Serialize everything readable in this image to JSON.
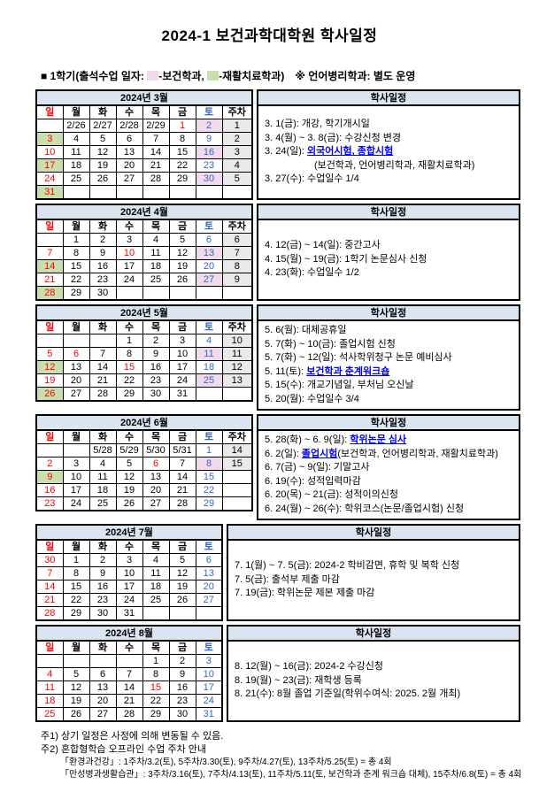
{
  "title": "2024-1 보건과학대학원 학사일정",
  "legend": {
    "prefix": "■ 1학기(출석수업 일자: ",
    "pink_label": "-보건학과, ",
    "green_label": "-재활치료학과)",
    "suffix": "※ 언어병리학과: 별도 운영"
  },
  "schedule_header": "학사일정",
  "weekday_headers": [
    "일",
    "월",
    "화",
    "수",
    "목",
    "금",
    "토"
  ],
  "week_col_header": "주차",
  "colors": {
    "header_bg": "#dbe5f1",
    "pink_highlight": "#f0daec",
    "green_highlight": "#c9dfae",
    "sunday_red": "#ff0000",
    "saturday_blue": "#3366cc",
    "event_highlight_blue": "#0000ff",
    "week_cell_bg": "#e9e9e9"
  },
  "months": [
    {
      "title": "2024년 3월",
      "week_col": true,
      "rows": [
        {
          "days": [
            "",
            "2/26",
            "2/27",
            "2/28",
            "2/29",
            {
              "t": "1",
              "c": "red"
            },
            {
              "t": "2",
              "c": "blue",
              "bg": "pink"
            }
          ],
          "week": "1"
        },
        {
          "days": [
            {
              "t": "3",
              "c": "red",
              "bg": "green"
            },
            "4",
            "5",
            "6",
            "7",
            "8",
            {
              "t": "9",
              "c": "blue"
            }
          ],
          "week": "2"
        },
        {
          "days": [
            {
              "t": "10",
              "c": "red"
            },
            "11",
            "12",
            "13",
            "14",
            "15",
            {
              "t": "16",
              "c": "blue",
              "bg": "pink"
            }
          ],
          "week": "3"
        },
        {
          "days": [
            {
              "t": "17",
              "c": "red",
              "bg": "green"
            },
            "18",
            "19",
            "20",
            "21",
            "22",
            {
              "t": "23",
              "c": "blue"
            }
          ],
          "week": "4"
        },
        {
          "days": [
            {
              "t": "24",
              "c": "red"
            },
            "25",
            "26",
            "27",
            "28",
            "29",
            {
              "t": "30",
              "c": "blue",
              "bg": "pink"
            }
          ],
          "week": "5"
        },
        {
          "days": [
            {
              "t": "31",
              "c": "red",
              "bg": "green"
            },
            "",
            "",
            "",
            "",
            "",
            ""
          ],
          "week": ""
        }
      ],
      "events": [
        {
          "parts": [
            "3. 1(금): 개강, 학기개시일"
          ]
        },
        {
          "parts": [
            "3. 4(월) ~ 3. 8(금): 수강신청 변경"
          ]
        },
        {
          "parts": [
            "3. 24(일): ",
            {
              "t": "외국어시험, 종합시험",
              "hl": true
            }
          ]
        },
        {
          "parts": [
            "(보건학과, 언어병리학과, 재활치료학과)"
          ],
          "indent": true
        },
        {
          "parts": [
            "3. 27(수): 수업일수 1/4"
          ]
        }
      ]
    },
    {
      "title": "2024년 4월",
      "week_col": true,
      "rows": [
        {
          "days": [
            "",
            "1",
            "2",
            "3",
            "4",
            "5",
            {
              "t": "6",
              "c": "blue"
            }
          ],
          "week": "6"
        },
        {
          "days": [
            {
              "t": "7",
              "c": "red"
            },
            "8",
            "9",
            {
              "t": "10",
              "c": "red"
            },
            "11",
            "12",
            {
              "t": "13",
              "c": "blue",
              "bg": "pink"
            }
          ],
          "week": "7"
        },
        {
          "days": [
            {
              "t": "14",
              "c": "red",
              "bg": "green"
            },
            "15",
            "16",
            "17",
            "18",
            "19",
            {
              "t": "20",
              "c": "blue"
            }
          ],
          "week": "8"
        },
        {
          "days": [
            {
              "t": "21",
              "c": "red"
            },
            "22",
            "23",
            "24",
            "25",
            "26",
            {
              "t": "27",
              "c": "blue",
              "bg": "pink"
            }
          ],
          "week": "9"
        },
        {
          "days": [
            {
              "t": "28",
              "c": "red",
              "bg": "green"
            },
            "29",
            "30",
            "",
            "",
            "",
            ""
          ],
          "week": ""
        }
      ],
      "events": [
        {
          "parts": [
            "4. 12(금) ~ 14(일): 중간고사"
          ]
        },
        {
          "parts": [
            "4. 15(월) ~ 19(금): 1학기 논문심사 신청"
          ]
        },
        {
          "parts": [
            "4. 23(화): 수업일수 1/2"
          ]
        }
      ]
    },
    {
      "title": "2024년 5월",
      "week_col": true,
      "rows": [
        {
          "days": [
            "",
            "",
            "",
            "1",
            "2",
            "3",
            {
              "t": "4",
              "c": "blue"
            }
          ],
          "week": "10"
        },
        {
          "days": [
            {
              "t": "5",
              "c": "red"
            },
            {
              "t": "6",
              "c": "red"
            },
            "7",
            "8",
            "9",
            "10",
            {
              "t": "11",
              "c": "blue",
              "bg": "pink"
            }
          ],
          "week": "11"
        },
        {
          "days": [
            {
              "t": "12",
              "c": "red",
              "bg": "green"
            },
            "13",
            "14",
            {
              "t": "15",
              "c": "red"
            },
            "16",
            "17",
            {
              "t": "18",
              "c": "blue"
            }
          ],
          "week": "12"
        },
        {
          "days": [
            {
              "t": "19",
              "c": "red"
            },
            "20",
            "21",
            "22",
            "23",
            "24",
            {
              "t": "25",
              "c": "blue",
              "bg": "pink"
            }
          ],
          "week": "13"
        },
        {
          "days": [
            {
              "t": "26",
              "c": "red",
              "bg": "green"
            },
            "27",
            "28",
            "29",
            "30",
            "31",
            ""
          ],
          "week": ""
        }
      ],
      "events": [
        {
          "parts": [
            "5. 6(월): 대체공휴일"
          ]
        },
        {
          "parts": [
            "5. 7(화) ~ 10(금): 졸업시험 신청"
          ]
        },
        {
          "parts": [
            "5. 7(화) ~ 12(일): 석사학위청구 논문 예비심사"
          ]
        },
        {
          "parts": [
            "5. 11(토): ",
            {
              "t": "보건학과 춘계워크숍",
              "hl": true
            }
          ]
        },
        {
          "parts": [
            "5. 15(수): 개교기념일, 부처님 오신날"
          ]
        },
        {
          "parts": [
            "5. 20(월): 수업일수 3/4"
          ]
        }
      ]
    },
    {
      "title": "2024년 6월",
      "week_col": true,
      "rows": [
        {
          "days": [
            "",
            "",
            "5/28",
            "5/29",
            "5/30",
            "5/31",
            {
              "t": "1",
              "c": "blue"
            }
          ],
          "week": "14"
        },
        {
          "days": [
            {
              "t": "2",
              "c": "red"
            },
            "3",
            "4",
            "5",
            {
              "t": "6",
              "c": "red"
            },
            "7",
            {
              "t": "8",
              "c": "blue",
              "bg": "pink"
            }
          ],
          "week": "15"
        },
        {
          "days": [
            {
              "t": "9",
              "c": "red",
              "bg": "green"
            },
            "10",
            "11",
            "12",
            "13",
            "14",
            {
              "t": "15",
              "c": "blue"
            }
          ],
          "week": ""
        },
        {
          "days": [
            {
              "t": "16",
              "c": "red"
            },
            "17",
            "18",
            "19",
            "20",
            "21",
            {
              "t": "22",
              "c": "blue"
            }
          ],
          "week": ""
        },
        {
          "days": [
            {
              "t": "23",
              "c": "red"
            },
            "24",
            "25",
            "26",
            "27",
            "28",
            {
              "t": "29",
              "c": "blue"
            }
          ],
          "week": ""
        }
      ],
      "events": [
        {
          "parts": [
            "5. 28(화) ~ 6. 9(일): ",
            {
              "t": "학위논문 심사",
              "hl": true
            }
          ]
        },
        {
          "parts": [
            "6. 2(일): ",
            {
              "t": "졸업시험",
              "hl": true
            },
            "(보건학과, 언어병리학과, 재활치료학과)"
          ]
        },
        {
          "parts": [
            "6. 7(금) ~ 9(일): 기말고사"
          ]
        },
        {
          "parts": [
            "6. 19(수): 성적입력마감"
          ]
        },
        {
          "parts": [
            "6. 20(목) ~ 21(금): 성적이의신청"
          ]
        },
        {
          "parts": [
            "6. 24(월) ~ 26(수): 학위코스(논문/졸업시험) 신청"
          ]
        }
      ]
    },
    {
      "title": "2024년 7월",
      "week_col": false,
      "rows": [
        {
          "days": [
            {
              "t": "30",
              "c": "red"
            },
            "1",
            "2",
            "3",
            "4",
            "5",
            {
              "t": "6",
              "c": "blue"
            }
          ],
          "week": ""
        },
        {
          "days": [
            {
              "t": "7",
              "c": "red"
            },
            "8",
            "9",
            "10",
            "11",
            "12",
            {
              "t": "13",
              "c": "blue"
            }
          ],
          "week": ""
        },
        {
          "days": [
            {
              "t": "14",
              "c": "red"
            },
            "15",
            "16",
            "17",
            "18",
            "19",
            {
              "t": "20",
              "c": "blue"
            }
          ],
          "week": ""
        },
        {
          "days": [
            {
              "t": "21",
              "c": "red"
            },
            "22",
            "23",
            "24",
            "25",
            "26",
            {
              "t": "27",
              "c": "blue"
            }
          ],
          "week": ""
        },
        {
          "days": [
            {
              "t": "28",
              "c": "red"
            },
            "29",
            "30",
            "31",
            "",
            "",
            ""
          ],
          "week": ""
        }
      ],
      "events": [
        {
          "parts": [
            "7. 1(월) ~ 7. 5(금): 2024-2 학비감면, 휴학 및 복학 신청"
          ]
        },
        {
          "parts": [
            "7. 5(금): 출석부 제출 마감"
          ]
        },
        {
          "parts": [
            "7. 19(금): 학위논문 제본 제출 마감"
          ]
        }
      ]
    },
    {
      "title": "2024년 8월",
      "week_col": false,
      "rows": [
        {
          "days": [
            "",
            "",
            "",
            "",
            "1",
            "2",
            {
              "t": "3",
              "c": "blue"
            }
          ],
          "week": ""
        },
        {
          "days": [
            {
              "t": "4",
              "c": "red"
            },
            "5",
            "6",
            "7",
            "8",
            "9",
            {
              "t": "10",
              "c": "blue"
            }
          ],
          "week": ""
        },
        {
          "days": [
            {
              "t": "11",
              "c": "red"
            },
            "12",
            "13",
            "14",
            {
              "t": "15",
              "c": "red"
            },
            "16",
            {
              "t": "17",
              "c": "blue"
            }
          ],
          "week": ""
        },
        {
          "days": [
            {
              "t": "18",
              "c": "red"
            },
            "19",
            "20",
            "21",
            "22",
            "23",
            {
              "t": "24",
              "c": "blue"
            }
          ],
          "week": ""
        },
        {
          "days": [
            {
              "t": "25",
              "c": "red"
            },
            "26",
            "27",
            "28",
            "29",
            "30",
            {
              "t": "31",
              "c": "blue"
            }
          ],
          "week": ""
        }
      ],
      "events": [
        {
          "parts": [
            "8. 12(월) ~ 16(금): 2024-2 수강신청"
          ]
        },
        {
          "parts": [
            "8. 19(월) ~ 23(금): 재학생 등록"
          ]
        },
        {
          "parts": [
            "8. 21(수): 8월 졸업 기준일(학위수여식: 2025. 2월 개최)"
          ]
        }
      ]
    }
  ],
  "notes": [
    {
      "t": "주1) 상기 일정은 사정에 의해 변동될 수 있음.",
      "sub": false
    },
    {
      "t": "주2) 혼합형학습 오프라인 수업 주차 안내",
      "sub": false
    },
    {
      "t": "「환경과건강」: 1주차/3.2(토), 5주차/3.30(토), 9주차/4.27(토), 13주차/5.25(토) = 총 4회",
      "sub": true
    },
    {
      "t": "「만성병과생활습관」: 3주차/3.16(토), 7주차/4.13(토), 11주차/5.11(토, 보건학과 춘계 워크숍 대체), 15주차/6.8(토) = 총 4회",
      "sub": true
    }
  ]
}
